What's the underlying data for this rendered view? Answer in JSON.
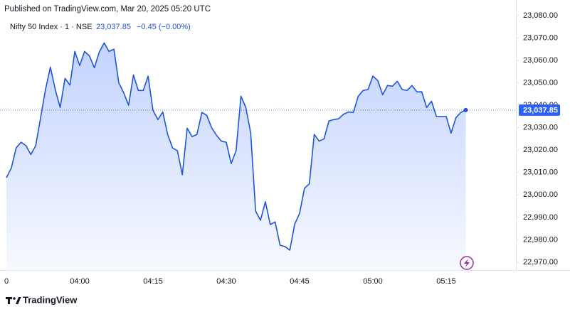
{
  "publisher": "Published on TradingView.com, Mar 20, 2025 05:20 UTC",
  "brand": "TradingView",
  "chart_data": {
    "type": "line",
    "symbol": "Nifty 50 Index · 1 · NSE",
    "last_price": "23,037.85",
    "change": "−0.45 (−0.00%)",
    "color": "#1f55dd",
    "categories": [
      "0",
      null,
      null,
      null,
      null,
      null,
      null,
      null,
      null,
      null,
      null,
      null,
      null,
      null,
      null,
      "04:00",
      null,
      null,
      null,
      null,
      null,
      null,
      null,
      null,
      null,
      null,
      null,
      null,
      null,
      null,
      "04:15",
      null,
      null,
      null,
      null,
      null,
      null,
      null,
      null,
      null,
      null,
      null,
      null,
      null,
      null,
      "04:30",
      null,
      null,
      null,
      null,
      null,
      null,
      null,
      null,
      null,
      null,
      null,
      null,
      null,
      null,
      "04:45",
      null,
      null,
      null,
      null,
      null,
      null,
      null,
      null,
      null,
      null,
      null,
      null,
      null,
      null,
      "05:00",
      null,
      null,
      null,
      null,
      null,
      null,
      null,
      null,
      null,
      null,
      null,
      null,
      null,
      null,
      "05:15",
      null,
      null,
      null,
      null
    ],
    "values": [
      23007.7,
      23012,
      23021,
      23023.5,
      23022,
      23018,
      23022,
      23034.5,
      23047,
      23057,
      23047,
      23039,
      23052,
      23049,
      23064,
      23057.7,
      23064,
      23062,
      23056.7,
      23063.7,
      23067.8,
      23064,
      23065,
      23050,
      23045.6,
      23040,
      23053.5,
      23046.6,
      23046.6,
      23053,
      23037.7,
      23033.6,
      23037,
      23027,
      23021,
      23019.7,
      23009,
      23029.8,
      23026,
      23027,
      23036.8,
      23035.5,
      23030,
      23026.6,
      23024,
      23023.5,
      23014,
      23019.7,
      23044,
      23039,
      23027.6,
      22992.8,
      22988.7,
      22997,
      22986.8,
      22988,
      22977.6,
      22977,
      22975.4,
      22987,
      22991.8,
      23003,
      23005,
      23027,
      23024,
      23025,
      23033,
      23033.6,
      23034,
      23036,
      23037,
      23036.8,
      23044,
      23046.6,
      23047,
      23053,
      23051,
      23044.7,
      23048.8,
      23048.5,
      23050.7,
      23047,
      23046.6,
      23048.8,
      23046,
      23046,
      23039,
      23041.8,
      23035,
      23035,
      23035,
      23027.6,
      23034.5,
      23036.8,
      23037.85
    ],
    "ylim": [
      22966.5,
      23080.6
    ],
    "yticks": [
      {
        "value": 22970,
        "label": "22,970.00"
      },
      {
        "value": 22980,
        "label": "22,980.00"
      },
      {
        "value": 22990,
        "label": "22,990.00"
      },
      {
        "value": 23000,
        "label": "23,000.00"
      },
      {
        "value": 23010,
        "label": "23,010.00"
      },
      {
        "value": 23020,
        "label": "23,020.00"
      },
      {
        "value": 23030,
        "label": "23,030.00"
      },
      {
        "value": 23040,
        "label": "23,040.00"
      },
      {
        "value": 23050,
        "label": "23,050.00"
      },
      {
        "value": 23060,
        "label": "23,060.00"
      },
      {
        "value": 23070,
        "label": "23,070.00"
      },
      {
        "value": 23080,
        "label": "23,080.00"
      }
    ],
    "grid": false
  }
}
